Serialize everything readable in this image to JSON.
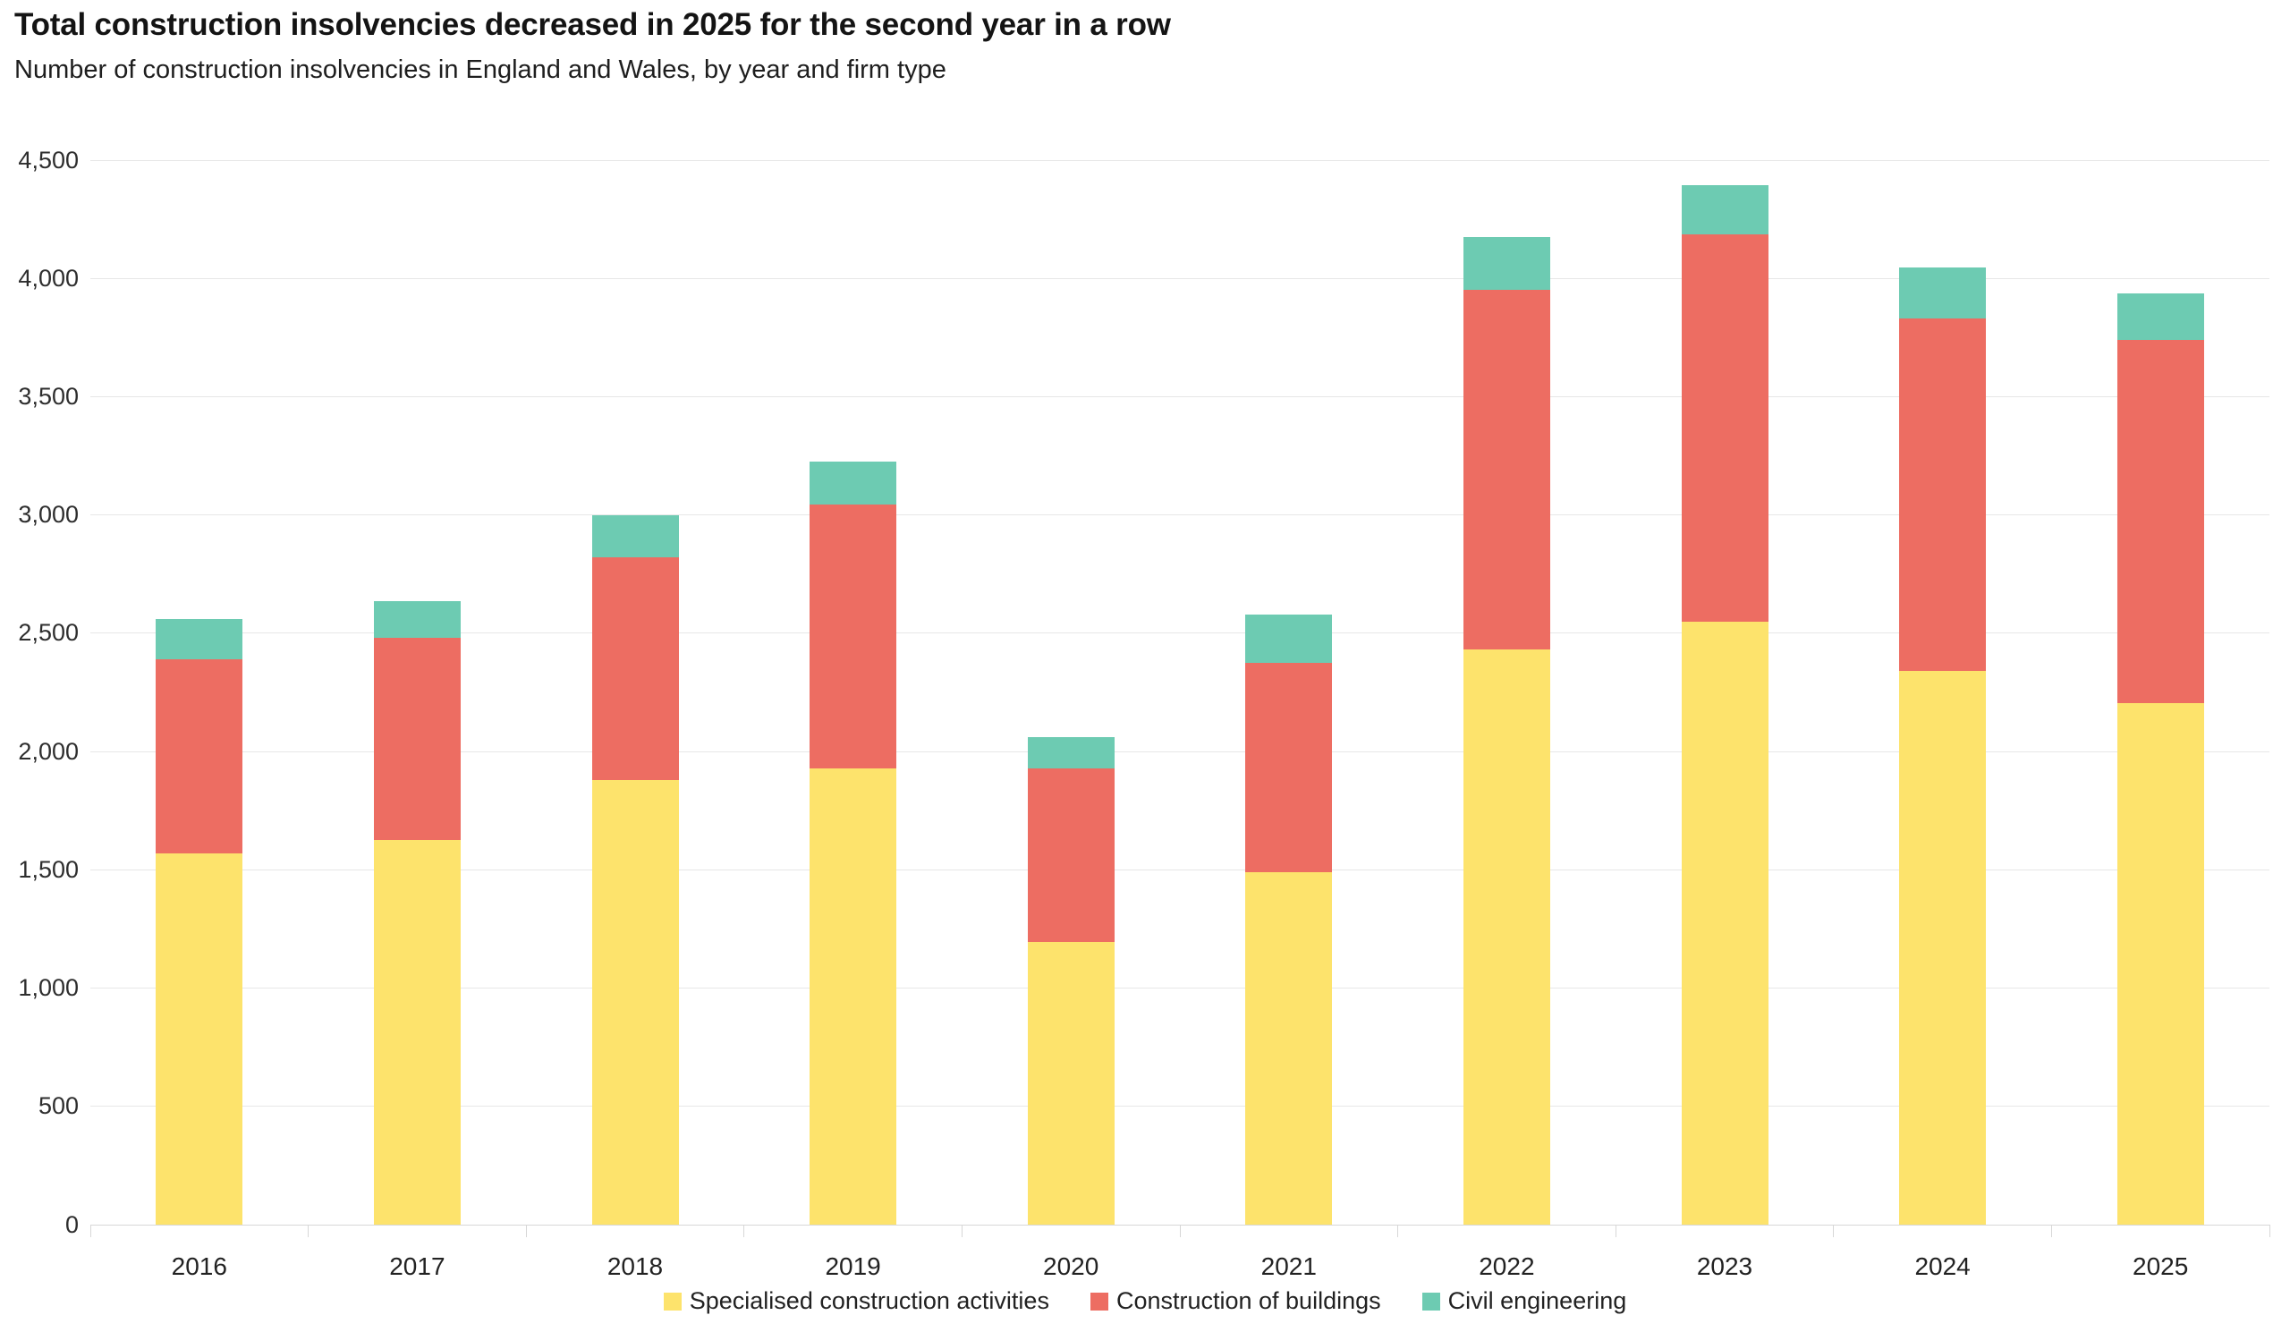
{
  "header": {
    "title": "Total construction insolvencies decreased in 2025 for the second year in a row",
    "subtitle": "Number of construction insolvencies in England and Wales, by year and firm type"
  },
  "colors": {
    "specialised": "#FDE36C",
    "buildings": "#ED6D62",
    "civil": "#6DCBB2",
    "gridline": "#E7E7E7",
    "axis": "#D7D7D7",
    "title_text": "#141414",
    "axis_text": "#2E2E2E"
  },
  "chart_data": {
    "type": "bar",
    "stacked": true,
    "title": "Total construction insolvencies decreased in 2025 for the second year in a row",
    "subtitle": "Number of construction insolvencies in England and Wales, by year and firm type",
    "categories": [
      "2016",
      "2017",
      "2018",
      "2019",
      "2020",
      "2021",
      "2022",
      "2023",
      "2024",
      "2025"
    ],
    "series": [
      {
        "name": "Specialised construction activities",
        "color": "#FDE36C",
        "values": [
          1570,
          1625,
          1880,
          1930,
          1195,
          1490,
          2430,
          2550,
          2340,
          2205
        ]
      },
      {
        "name": "Construction of buildings",
        "color": "#ED6D62",
        "values": [
          820,
          855,
          940,
          1115,
          735,
          885,
          1520,
          1635,
          1490,
          1535
        ]
      },
      {
        "name": "Civil engineering",
        "color": "#6DCBB2",
        "values": [
          170,
          155,
          180,
          180,
          130,
          205,
          225,
          210,
          215,
          195
        ]
      }
    ],
    "totals": [
      2560,
      2635,
      3000,
      3225,
      2060,
      2580,
      4175,
      4395,
      4045,
      3935
    ],
    "xlabel": "",
    "ylabel": "",
    "ylim": [
      0,
      4500
    ],
    "ytick_values": [
      0,
      500,
      1000,
      1500,
      2000,
      2500,
      3000,
      3500,
      4000,
      4500
    ],
    "ytick_labels": [
      "0",
      "500",
      "1,000",
      "1,500",
      "2,000",
      "2,500",
      "3,000",
      "3,500",
      "4,000",
      "4,500"
    ],
    "grid": "horizontal",
    "legend_position": "bottom"
  },
  "legend": {
    "items": [
      {
        "label": "Specialised construction activities",
        "color": "#FDE36C"
      },
      {
        "label": "Construction of buildings",
        "color": "#ED6D62"
      },
      {
        "label": "Civil engineering",
        "color": "#6DCBB2"
      }
    ]
  }
}
